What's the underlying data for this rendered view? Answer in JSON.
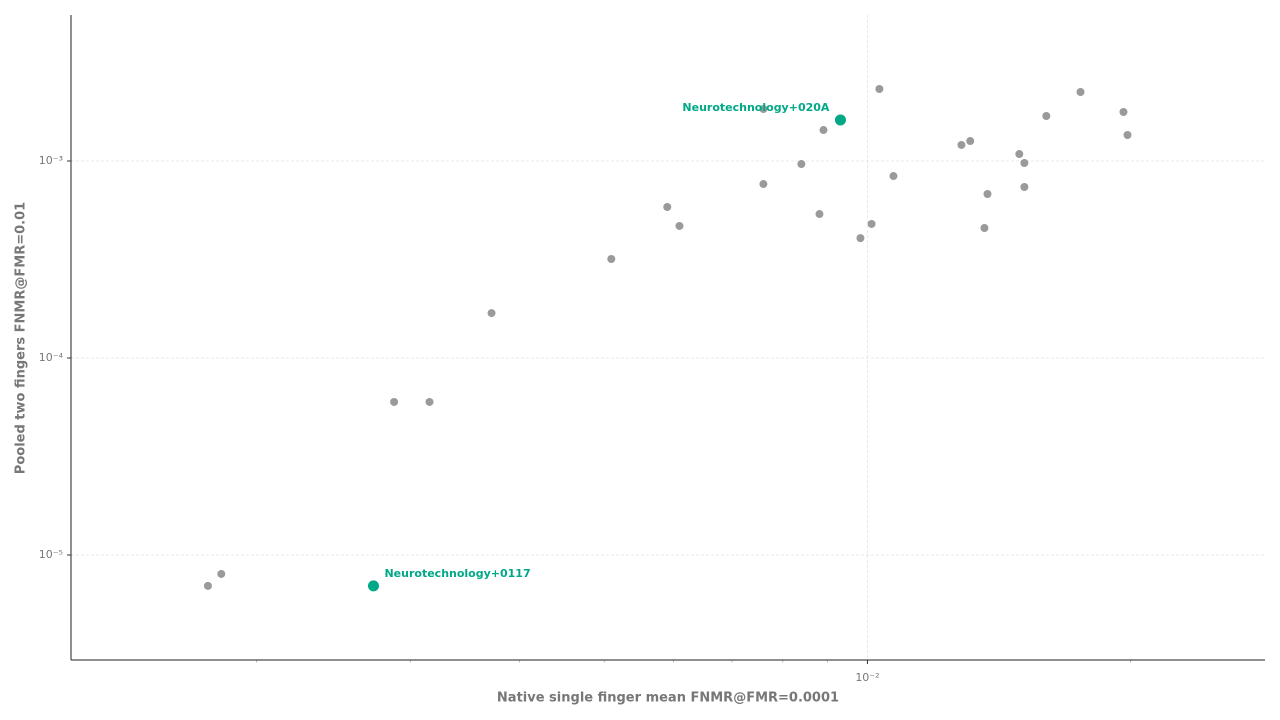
{
  "chart_data": {
    "type": "scatter",
    "x_label": "Native single finger mean FNMR@FMR=0.0001",
    "y_label": "Pooled two fingers FNMR@FMR=0.01",
    "xlog": true,
    "ylog": true,
    "grid": true,
    "xlim": [
      0.001227,
      0.0285
    ],
    "ylim": [
      2.93e-06,
      0.00551
    ],
    "xticks": [
      {
        "value": 0.01,
        "label": "10⁻²"
      }
    ],
    "xminorticks": [
      0.002,
      0.003,
      0.004,
      0.005,
      0.006,
      0.007,
      0.008,
      0.009,
      0.02
    ],
    "yticks": [
      {
        "value": 1e-05,
        "label": "10⁻⁵"
      },
      {
        "value": 0.0001,
        "label": "10⁻⁴"
      },
      {
        "value": 0.001,
        "label": "10⁻³"
      }
    ],
    "series": [
      {
        "color": "#9a9a9a",
        "x": [
          0.00176,
          0.001823,
          0.002874,
          0.003155,
          0.003715,
          0.005093,
          0.005902,
          0.006095,
          0.007603,
          0.007603,
          0.008403,
          0.008813,
          0.008907,
          0.009817,
          0.01011,
          0.01032,
          0.01071,
          0.01281,
          0.01311,
          0.01361,
          0.01372,
          0.01492,
          0.01512,
          0.01512,
          0.01602,
          0.01753,
          0.01963,
          0.01984
        ],
        "y": [
          6.97e-06,
          8.01e-06,
          5.98e-05,
          5.98e-05,
          0.000169,
          0.000318,
          0.000584,
          0.000468,
          0.001836,
          0.000764,
          0.000965,
          0.000538,
          0.001436,
          0.000406,
          0.000479,
          0.00232,
          0.000839,
          0.001206,
          0.001263,
          0.000457,
          0.00068,
          0.001085,
          0.000977,
          0.000738,
          0.001692,
          0.00224,
          0.001773,
          0.001355
        ]
      },
      {
        "color": "#00a887",
        "x": [
          0.002722,
          0.009314
        ],
        "y": [
          6.97e-06,
          0.001616
        ],
        "labels": [
          "Neurotechnology+0117",
          "Neurotechnology+020A"
        ]
      }
    ]
  }
}
